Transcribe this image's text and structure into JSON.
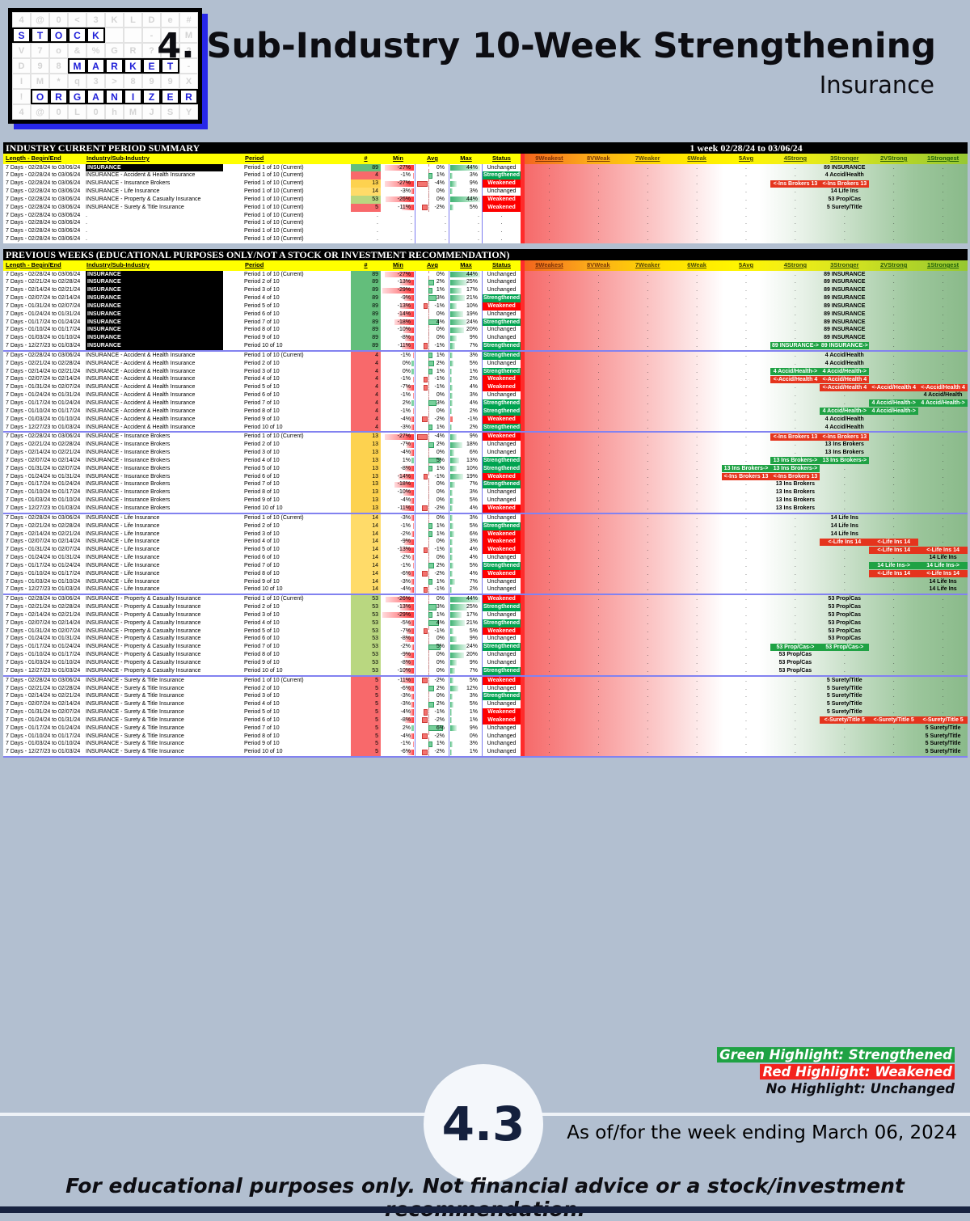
{
  "page": {
    "title": "4. Sub-Industry 10-Week Strengthening",
    "subtitle": "Insurance",
    "score_badge": "4.3",
    "as_of": "As of/for the week ending March 06, 2024",
    "footer_disclaimer": "For educational purposes only. Not financial advice or a stock/investment recommendation."
  },
  "logo": {
    "rows": [
      "4@0<3KLDe#",
      "STOCK..-SM",
      "V7o&%GR?V2",
      "D98MARKET-",
      "IM*q3>899X",
      "!ORGANIZER",
      "4@0L0hMJSY"
    ],
    "highlights": [
      null,
      [
        0,
        4
      ],
      null,
      [
        3,
        8
      ],
      null,
      [
        1,
        9
      ],
      null
    ]
  },
  "legend": {
    "green": "Green Highlight: Strengthened",
    "red": "Red Highlight: Weakened",
    "none": "No Highlight: Unchanged"
  },
  "columns": {
    "left": [
      "Length - Begin/End",
      "Industry/Sub-Industry",
      "Period",
      "#",
      "Min",
      "Avg",
      "Max",
      "Status"
    ],
    "grad": [
      "9Weakest",
      "8VWeak",
      "7Weaker",
      "6Weak",
      "5Avg",
      "4Strong",
      "3Stronger",
      "2VStrong",
      "1Strongest"
    ],
    "grad_label_colors": [
      "#7a2f06",
      "#7a3a06",
      "#5c4a06",
      "#4c4c06",
      "#3d3d02",
      "#374a04",
      "#2f5206",
      "#285a08",
      "#1f6009"
    ]
  },
  "colors": {
    "strengthened": "#00a350",
    "weakened": "#fe0000",
    "highlight_green": "#1fa244",
    "highlight_red": "#e5341d",
    "count_colors": {
      "89": "#63be7b",
      "53": "#b9d780",
      "14": "#ffdb69",
      "13": "#fdd24f",
      "5": "#f8696b",
      "4": "#f8696b"
    }
  },
  "scales": {
    "min_range": 30,
    "avg_range": 6,
    "max_range": 45
  },
  "table1": {
    "title": "INDUSTRY CURRENT PERIOD SUMMARY",
    "week_label": "1 week 02/28/24 to 03/06/24",
    "rows": [
      {
        "date": "7 Days - 02/28/24 to 03/06/24",
        "industry": "INSURANCE",
        "industry_black": true,
        "period": "Period 1 of 10 (Current)",
        "count": 89,
        "min": -27,
        "avg": 0,
        "max": 44,
        "status": "Unchanged",
        "grad": [
          [
            6,
            "89 INSURANCE",
            ""
          ]
        ]
      },
      {
        "date": "7 Days - 02/28/24 to 03/06/24",
        "industry": "INSURANCE - Accident & Health Insurance",
        "period": "Period 1 of 10 (Current)",
        "count": 4,
        "min": -1,
        "avg": 1,
        "max": 3,
        "status": "Strengthened",
        "grad": [
          [
            6,
            "4 Accid/Health",
            ""
          ]
        ]
      },
      {
        "date": "7 Days - 02/28/24 to 03/06/24",
        "industry": "INSURANCE - Insurance Brokers",
        "period": "Period 1 of 10 (Current)",
        "count": 13,
        "min": -27,
        "avg": -4,
        "max": 9,
        "status": "Weakened",
        "grad": [
          [
            5,
            "<-Ins Brokers 13",
            "r"
          ],
          [
            6,
            "<-Ins Brokers 13",
            "r"
          ]
        ]
      },
      {
        "date": "7 Days - 02/28/24 to 03/06/24",
        "industry": "INSURANCE - Life Insurance",
        "period": "Period 1 of 10 (Current)",
        "count": 14,
        "min": -3,
        "avg": 0,
        "max": 3,
        "status": "Unchanged",
        "grad": [
          [
            6,
            "14 Life Ins",
            ""
          ]
        ]
      },
      {
        "date": "7 Days - 02/28/24 to 03/06/24",
        "industry": "INSURANCE - Property & Casualty Insurance",
        "period": "Period 1 of 10 (Current)",
        "count": 53,
        "min": -26,
        "avg": 0,
        "max": 44,
        "status": "Weakened",
        "grad": [
          [
            6,
            "53 Prop/Cas",
            ""
          ]
        ]
      },
      {
        "date": "7 Days - 02/28/24 to 03/06/24",
        "industry": "INSURANCE - Surety & Title Insurance",
        "period": "Period 1 of 10 (Current)",
        "count": 5,
        "min": -11,
        "avg": -2,
        "max": 5,
        "status": "Weakened",
        "grad": [
          [
            6,
            "5 Surety/Title",
            ""
          ]
        ]
      },
      {
        "date": "7 Days - 02/28/24 to 03/06/24",
        "industry": ".",
        "period": "Period 1 of 10 (Current)",
        "dot": true
      },
      {
        "date": "7 Days - 02/28/24 to 03/06/24",
        "industry": ".",
        "period": "Period 1 of 10 (Current)",
        "dot": true
      },
      {
        "date": "7 Days - 02/28/24 to 03/06/24",
        "industry": ".",
        "period": "Period 1 of 10 (Current)",
        "dot": true
      },
      {
        "date": "7 Days - 02/28/24 to 03/06/24",
        "industry": ".",
        "period": "Period 1 of 10 (Current)",
        "dot": true
      }
    ]
  },
  "table2": {
    "title": "PREVIOUS WEEKS (EDUCATIONAL PURPOSES ONLY/NOT A STOCK OR INVESTMENT RECOMMENDATION)",
    "dates": [
      "7 Days - 02/28/24 to 03/06/24",
      "7 Days - 02/21/24 to 02/28/24",
      "7 Days - 02/14/24 to 02/21/24",
      "7 Days - 02/07/24 to 02/14/24",
      "7 Days - 01/31/24 to 02/07/24",
      "7 Days - 01/24/24 to 01/31/24",
      "7 Days - 01/17/24 to 01/24/24",
      "7 Days - 01/10/24 to 01/17/24",
      "7 Days - 01/03/24 to 01/10/24",
      "7 Days - 12/27/23 to 01/03/24"
    ],
    "periods": [
      "Period 1 of 10 (Current)",
      "Period 2 of 10",
      "Period 3 of 10",
      "Period 4 of 10",
      "Period 5 of 10",
      "Period 6 of 10",
      "Period 7 of 10",
      "Period 8 of 10",
      "Period 9 of 10",
      "Period 10 of 10"
    ],
    "blocks": [
      {
        "industry": "INSURANCE",
        "industry_black": true,
        "count": 89,
        "min": [
          -27,
          -13,
          -29,
          -9,
          -13,
          -14,
          -18,
          -10,
          -8,
          -11
        ],
        "avg": [
          0,
          2,
          1,
          3,
          -1,
          0,
          4,
          0,
          0,
          -1
        ],
        "max": [
          44,
          25,
          17,
          21,
          10,
          19,
          24,
          20,
          9,
          7
        ],
        "status": [
          "Unchanged",
          "Unchanged",
          "Unchanged",
          "Strengthened",
          "Weakened",
          "Unchanged",
          "Strengthened",
          "Unchanged",
          "Unchanged",
          "Strengthened"
        ],
        "grad": [
          [
            [
              6,
              "89 INSURANCE",
              ""
            ]
          ],
          [
            [
              6,
              "89 INSURANCE",
              ""
            ]
          ],
          [
            [
              6,
              "89 INSURANCE",
              ""
            ]
          ],
          [
            [
              6,
              "89 INSURANCE",
              ""
            ]
          ],
          [
            [
              6,
              "89 INSURANCE",
              ""
            ]
          ],
          [
            [
              6,
              "89 INSURANCE",
              ""
            ]
          ],
          [
            [
              6,
              "89 INSURANCE",
              ""
            ]
          ],
          [
            [
              6,
              "89 INSURANCE",
              ""
            ]
          ],
          [
            [
              6,
              "89 INSURANCE",
              ""
            ]
          ],
          [
            [
              5,
              "89 INSURANCE->",
              "g"
            ],
            [
              6,
              "89 INSURANCE->",
              "g"
            ]
          ]
        ]
      },
      {
        "industry": "INSURANCE - Accident & Health Insurance",
        "count": 4,
        "min": [
          -1,
          0,
          0,
          -1,
          -7,
          -1,
          2,
          -1,
          -4,
          -3
        ],
        "avg": [
          1,
          2,
          1,
          -1,
          -1,
          0,
          3,
          0,
          -2,
          1
        ],
        "max": [
          3,
          5,
          1,
          2,
          4,
          3,
          4,
          2,
          -1,
          2
        ],
        "status": [
          "Strengthened",
          "Unchanged",
          "Strengthened",
          "Weakened",
          "Weakened",
          "Unchanged",
          "Strengthened",
          "Strengthened",
          "Weakened",
          "Strengthened"
        ],
        "grad": [
          [
            [
              6,
              "4 Accid/Health",
              ""
            ]
          ],
          [
            [
              6,
              "4 Accid/Health",
              ""
            ]
          ],
          [
            [
              5,
              "4 Accid/Health->",
              "g"
            ],
            [
              6,
              "4 Accid/Health->",
              "g"
            ]
          ],
          [
            [
              5,
              "<-Accid/Health 4",
              "r"
            ],
            [
              6,
              "<-Accid/Health 4",
              "r"
            ]
          ],
          [
            [
              6,
              "<-Accid/Health 4",
              "r"
            ],
            [
              7,
              "<-Accid/Health 4",
              "r"
            ],
            [
              8,
              "<-Accid/Health 4",
              "r"
            ]
          ],
          [
            [
              8,
              "4 Accid/Health",
              ""
            ]
          ],
          [
            [
              7,
              "4 Accid/Health->",
              "g"
            ],
            [
              8,
              "4 Accid/Health->",
              "g"
            ]
          ],
          [
            [
              6,
              "4 Accid/Health->",
              "g"
            ],
            [
              7,
              "4 Accid/Health->",
              "g"
            ]
          ],
          [
            [
              6,
              "4 Accid/Health",
              ""
            ]
          ],
          [
            [
              6,
              "4 Accid/Health",
              ""
            ]
          ]
        ]
      },
      {
        "industry": "INSURANCE - Insurance Brokers",
        "count": 13,
        "min": [
          -27,
          -7,
          -4,
          1,
          -8,
          -14,
          -18,
          -10,
          -4,
          -11
        ],
        "avg": [
          -4,
          2,
          0,
          5,
          1,
          -1,
          0,
          0,
          0,
          -2
        ],
        "max": [
          9,
          18,
          6,
          13,
          10,
          19,
          7,
          3,
          5,
          4
        ],
        "status": [
          "Weakened",
          "Unchanged",
          "Unchanged",
          "Strengthened",
          "Strengthened",
          "Weakened",
          "Strengthened",
          "Unchanged",
          "Unchanged",
          "Weakened"
        ],
        "grad": [
          [
            [
              5,
              "<-Ins Brokers 13",
              "r"
            ],
            [
              6,
              "<-Ins Brokers 13",
              "r"
            ]
          ],
          [
            [
              6,
              "13 Ins Brokers",
              ""
            ]
          ],
          [
            [
              6,
              "13 Ins Brokers",
              ""
            ]
          ],
          [
            [
              5,
              "13 Ins Brokers->",
              "g"
            ],
            [
              6,
              "13 Ins Brokers->",
              "g"
            ]
          ],
          [
            [
              4,
              "13 Ins Brokers->",
              "g"
            ],
            [
              5,
              "13 Ins Brokers->",
              "g"
            ]
          ],
          [
            [
              4,
              "<-Ins Brokers 13",
              "r"
            ],
            [
              5,
              "<-Ins Brokers 13",
              "r"
            ]
          ],
          [
            [
              5,
              "13 Ins Brokers",
              ""
            ]
          ],
          [
            [
              5,
              "13 Ins Brokers",
              ""
            ]
          ],
          [
            [
              5,
              "13 Ins Brokers",
              ""
            ]
          ],
          [
            [
              5,
              "13 Ins Brokers",
              ""
            ]
          ]
        ]
      },
      {
        "industry": "INSURANCE - Life Insurance",
        "count": 14,
        "min": [
          -3,
          -1,
          -2,
          -9,
          -13,
          -2,
          -1,
          -6,
          -3,
          -4
        ],
        "avg": [
          0,
          1,
          1,
          0,
          -1,
          0,
          2,
          -2,
          1,
          -1
        ],
        "max": [
          3,
          5,
          6,
          3,
          4,
          4,
          5,
          4,
          7,
          2
        ],
        "status": [
          "Unchanged",
          "Strengthened",
          "Weakened",
          "Weakened",
          "Weakened",
          "Unchanged",
          "Strengthened",
          "Weakened",
          "Unchanged",
          "Unchanged"
        ],
        "grad": [
          [
            [
              6,
              "14 Life Ins",
              ""
            ]
          ],
          [
            [
              6,
              "14 Life Ins",
              ""
            ]
          ],
          [
            [
              6,
              "14 Life Ins",
              ""
            ]
          ],
          [
            [
              6,
              "<-Life Ins 14",
              "r"
            ],
            [
              7,
              "<-Life Ins 14",
              "r"
            ]
          ],
          [
            [
              7,
              "<-Life Ins 14",
              "r"
            ],
            [
              8,
              "<-Life Ins 14",
              "r"
            ]
          ],
          [
            [
              8,
              "14 Life Ins",
              ""
            ]
          ],
          [
            [
              7,
              "14 Life Ins->",
              "g"
            ],
            [
              8,
              "14 Life Ins->",
              "g"
            ]
          ],
          [
            [
              7,
              "<-Life Ins 14",
              "r"
            ],
            [
              8,
              "<-Life Ins 14",
              "r"
            ]
          ],
          [
            [
              8,
              "14 Life Ins",
              ""
            ]
          ],
          [
            [
              8,
              "14 Life Ins",
              ""
            ]
          ]
        ]
      },
      {
        "industry": "INSURANCE - Property & Casualty Insurance",
        "count": 53,
        "min": [
          -26,
          -13,
          -29,
          -5,
          -7,
          -8,
          -2,
          -9,
          -8,
          -10
        ],
        "avg": [
          0,
          3,
          1,
          4,
          -1,
          0,
          5,
          0,
          0,
          0
        ],
        "max": [
          44,
          25,
          17,
          21,
          5,
          9,
          24,
          20,
          9,
          7
        ],
        "status": [
          "Weakened",
          "Strengthened",
          "Unchanged",
          "Strengthened",
          "Weakened",
          "Unchanged",
          "Strengthened",
          "Unchanged",
          "Unchanged",
          "Strengthened"
        ],
        "grad": [
          [
            [
              6,
              "53 Prop/Cas",
              ""
            ]
          ],
          [
            [
              6,
              "53 Prop/Cas",
              ""
            ]
          ],
          [
            [
              6,
              "53 Prop/Cas",
              ""
            ]
          ],
          [
            [
              6,
              "53 Prop/Cas",
              ""
            ]
          ],
          [
            [
              6,
              "53 Prop/Cas",
              ""
            ]
          ],
          [
            [
              6,
              "53 Prop/Cas",
              ""
            ]
          ],
          [
            [
              5,
              "53 Prop/Cas->",
              "g"
            ],
            [
              6,
              "53 Prop/Cas->",
              "g"
            ]
          ],
          [
            [
              5,
              "53 Prop/Cas",
              ""
            ]
          ],
          [
            [
              5,
              "53 Prop/Cas",
              ""
            ]
          ],
          [
            [
              5,
              "53 Prop/Cas",
              ""
            ]
          ]
        ]
      },
      {
        "industry": "INSURANCE - Surety & Title Insurance",
        "count": 5,
        "min": [
          -11,
          -6,
          -3,
          -3,
          -4,
          -8,
          2,
          -4,
          -1,
          -6
        ],
        "avg": [
          -2,
          2,
          0,
          2,
          -1,
          -2,
          6,
          -2,
          1,
          -2
        ],
        "max": [
          5,
          12,
          3,
          5,
          1,
          1,
          9,
          0,
          3,
          1
        ],
        "status": [
          "Weakened",
          "Unchanged",
          "Strengthened",
          "Unchanged",
          "Weakened",
          "Weakened",
          "Unchanged",
          "Unchanged",
          "Unchanged",
          "Unchanged"
        ],
        "grad": [
          [
            [
              6,
              "5 Surety/Title",
              ""
            ]
          ],
          [
            [
              6,
              "5 Surety/Title",
              ""
            ]
          ],
          [
            [
              6,
              "5 Surety/Title",
              ""
            ]
          ],
          [
            [
              6,
              "5 Surety/Title",
              ""
            ]
          ],
          [
            [
              6,
              "5 Surety/Title",
              ""
            ]
          ],
          [
            [
              6,
              "<-Surety/Title 5",
              "r"
            ],
            [
              7,
              "<-Surety/Title 5",
              "r"
            ],
            [
              8,
              "<-Surety/Title 5",
              "r"
            ]
          ],
          [
            [
              8,
              "5 Surety/Title",
              ""
            ]
          ],
          [
            [
              8,
              "5 Surety/Title",
              ""
            ]
          ],
          [
            [
              8,
              "5 Surety/Title",
              ""
            ]
          ],
          [
            [
              8,
              "5 Surety/Title",
              ""
            ]
          ]
        ]
      }
    ]
  }
}
